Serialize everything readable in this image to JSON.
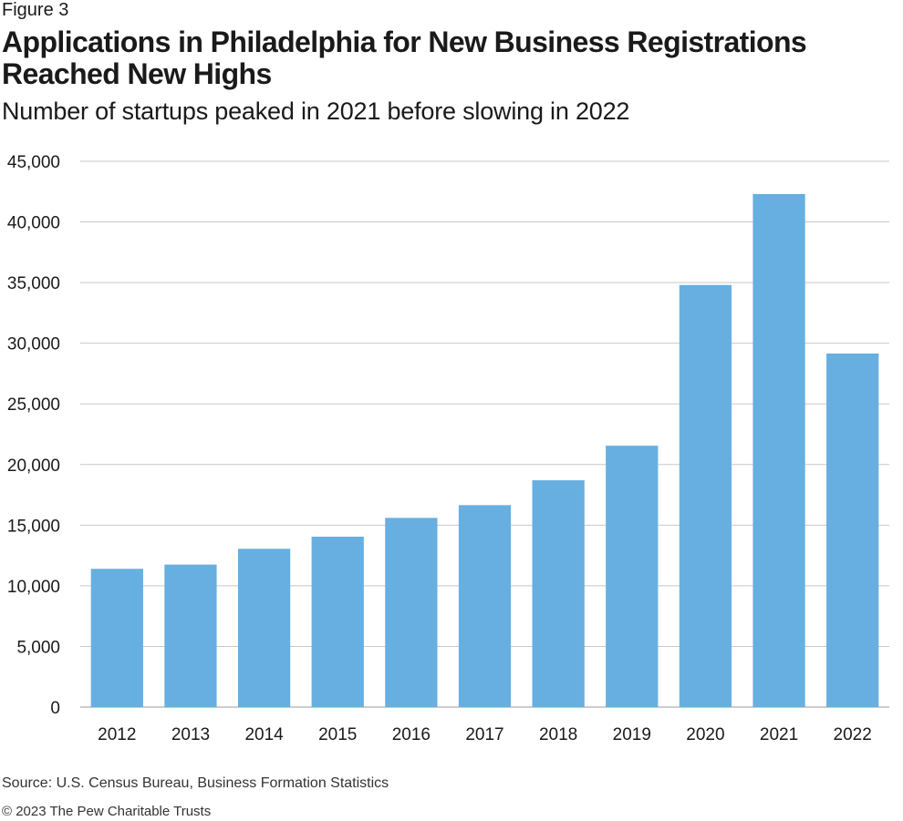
{
  "figure_label": "Figure 3",
  "title": "Applications in Philadelphia for New Business Registrations Reached New Highs",
  "subtitle": "Number of startups peaked in 2021 before slowing in 2022",
  "source": "Source: U.S. Census Bureau, Business Formation Statistics",
  "copyright": "© 2023 The Pew Charitable Trusts",
  "colors": {
    "bar": "#67afe0",
    "grid": "#c8c8c8",
    "axis": "#9a9a9a"
  },
  "chart_data": {
    "type": "bar",
    "title": "Applications in Philadelphia for New Business Registrations Reached New Highs",
    "subtitle": "Number of startups peaked in 2021 before slowing in 2022",
    "xlabel": "",
    "ylabel": "",
    "categories": [
      "2012",
      "2013",
      "2014",
      "2015",
      "2016",
      "2017",
      "2018",
      "2019",
      "2020",
      "2021",
      "2022"
    ],
    "values": [
      11400,
      11750,
      13050,
      14050,
      15600,
      16650,
      18700,
      21550,
      34800,
      42300,
      29150
    ],
    "ylim": [
      0,
      45000
    ],
    "yticks": [
      0,
      5000,
      10000,
      15000,
      20000,
      25000,
      30000,
      35000,
      40000,
      45000
    ],
    "ytick_labels": [
      "0",
      "5,000",
      "10,000",
      "15,000",
      "20,000",
      "25,000",
      "30,000",
      "35,000",
      "40,000",
      "45,000"
    ],
    "grid": true,
    "legend": "none"
  }
}
